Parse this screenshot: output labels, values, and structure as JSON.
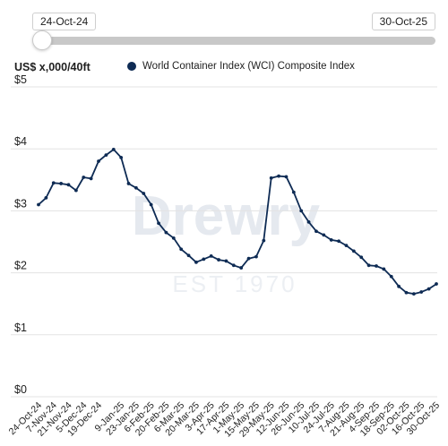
{
  "range": {
    "start": "24-Oct-24",
    "end": "30-Oct-25",
    "selected_fraction_start": 0,
    "selected_fraction_end": 1
  },
  "watermark": {
    "brand": "Drewry",
    "est": "EST 1970"
  },
  "colors": {
    "series": "#0e2b54",
    "grid": "#e3e3e3",
    "slider": "#c8c8c8"
  },
  "chart_data": {
    "type": "line",
    "ylabel": "US$ x,000/40ft",
    "ylim": [
      0,
      5
    ],
    "yticks": [
      {
        "v": 0,
        "label": "$0"
      },
      {
        "v": 1,
        "label": "$1"
      },
      {
        "v": 2,
        "label": "$2"
      },
      {
        "v": 3,
        "label": "$3"
      },
      {
        "v": 4,
        "label": "$4"
      },
      {
        "v": 5,
        "label": "$5"
      }
    ],
    "xtick_labels": [
      "24-Oct-24",
      "7-Nov-24",
      "21-Nov-24",
      "5-Dec-24",
      "19-Dec-24",
      "9-Jan-25",
      "23-Jan-25",
      "6-Feb-25",
      "20-Feb-25",
      "6-Mar-25",
      "20-Mar-25",
      "3-Apr-25",
      "17-Apr-25",
      "1-May-25",
      "15-May-25",
      "29-May-25",
      "12-Jun-25",
      "26-Jun-25",
      "10-Jul-25",
      "24-Jul-25",
      "7-Aug-25",
      "21-Aug-25",
      "4-Sep-25",
      "18-Sep-25",
      "02-Oct-25",
      "16-Oct-25",
      "30-Oct-25"
    ],
    "legend_position": "top",
    "grid": "horizontal",
    "series": [
      {
        "name": "World Container Index (WCI) Composite Index",
        "x": [
          "24-Oct-24",
          "31-Oct-24",
          "7-Nov-24",
          "14-Nov-24",
          "21-Nov-24",
          "28-Nov-24",
          "5-Dec-24",
          "12-Dec-24",
          "19-Dec-24",
          "26-Dec-24",
          "2-Jan-25",
          "9-Jan-25",
          "16-Jan-25",
          "23-Jan-25",
          "30-Jan-25",
          "6-Feb-25",
          "13-Feb-25",
          "20-Feb-25",
          "27-Feb-25",
          "6-Mar-25",
          "13-Mar-25",
          "20-Mar-25",
          "27-Mar-25",
          "3-Apr-25",
          "10-Apr-25",
          "17-Apr-25",
          "24-Apr-25",
          "1-May-25",
          "8-May-25",
          "15-May-25",
          "22-May-25",
          "29-May-25",
          "5-Jun-25",
          "12-Jun-25",
          "19-Jun-25",
          "26-Jun-25",
          "3-Jul-25",
          "10-Jul-25",
          "17-Jul-25",
          "24-Jul-25",
          "31-Jul-25",
          "7-Aug-25",
          "14-Aug-25",
          "21-Aug-25",
          "28-Aug-25",
          "4-Sep-25",
          "11-Sep-25",
          "18-Sep-25",
          "25-Sep-25",
          "02-Oct-25",
          "9-Oct-25",
          "16-Oct-25",
          "23-Oct-25",
          "30-Oct-25"
        ],
        "values": [
          3.1,
          3.21,
          3.45,
          3.44,
          3.42,
          3.33,
          3.54,
          3.52,
          3.8,
          3.9,
          3.99,
          3.86,
          3.44,
          3.37,
          3.28,
          3.1,
          2.8,
          2.65,
          2.56,
          2.38,
          2.28,
          2.17,
          2.22,
          2.27,
          2.21,
          2.19,
          2.12,
          2.08,
          2.23,
          2.26,
          2.52,
          3.53,
          3.56,
          3.55,
          3.3,
          3.0,
          2.82,
          2.67,
          2.61,
          2.53,
          2.51,
          2.44,
          2.35,
          2.25,
          2.12,
          2.11,
          2.06,
          1.94,
          1.78,
          1.68,
          1.66,
          1.69,
          1.74,
          1.82
        ]
      }
    ]
  }
}
